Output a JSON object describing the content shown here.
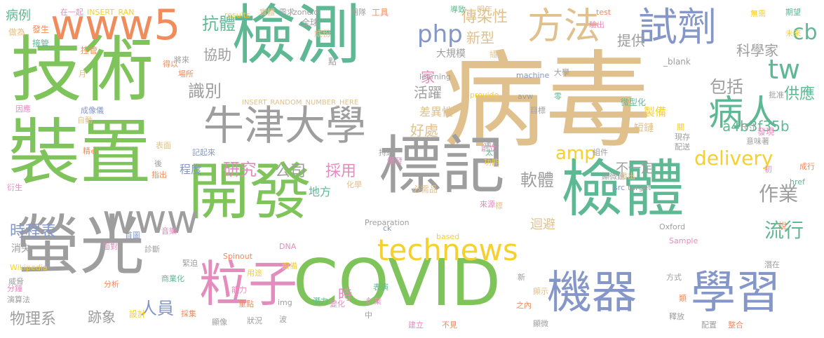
{
  "cloud": {
    "palette": {
      "tan": "#e0c18d",
      "green": "#7fc45a",
      "teal": "#5fb894",
      "gray": "#9e9e9e",
      "blue": "#8597c8",
      "pink": "#e58cbe",
      "orange": "#f08c5c",
      "yellow": "#f5d02f"
    },
    "words": [
      "病毒",
      "檢測",
      "技術",
      "裝置",
      "開發",
      "標記",
      "檢體",
      "螢光",
      "COVID",
      "機器",
      "學習",
      "牛津大學",
      "technews",
      "www5",
      "www",
      "試劑",
      "方法",
      "粒子",
      "病人",
      "php",
      "tw",
      "cb",
      "delivery",
      "amp",
      "抗體",
      "協助",
      "識別",
      "研究",
      "公司",
      "採用",
      "軟體",
      "作業",
      "流行",
      "包括",
      "供應",
      "家",
      "時程表",
      "人員",
      "物理系",
      "跡象",
      "時",
      "傳染性",
      "新型",
      "科學家",
      "活躍",
      "好處",
      "差異性",
      "不一定",
      "迴避",
      "a4b3f35b",
      "提供",
      "病例",
      "做為",
      "發生",
      "接管",
      "控管",
      "在一起",
      "INSERT_RAN",
      "INSERT_RANDOM_NUMBER_HERE",
      "results",
      "實體",
      "需求",
      "zoneid",
      "團隊",
      "工具",
      "導致",
      "明年",
      "test",
      "驗出",
      "無需",
      "期望",
      "未來",
      "全球",
      "成份",
      "大規模",
      "插入",
      "點",
      "_blank",
      "learning",
      "machine",
      "大學",
      "provide",
      "avw",
      "零",
      "微型化",
      "製備",
      "短鏈",
      "目標",
      "尺寸",
      "意味著",
      "批准",
      "關",
      "發現",
      "現存",
      "配送",
      "初",
      "成行",
      "得以",
      "將來",
      "場所",
      "月",
      "因應",
      "成像儀",
      "自動",
      "精心",
      "表面",
      "記起來",
      "持續",
      "爆發",
      "運算",
      "太",
      "功能",
      "創立",
      "組件",
      "顯微鏡",
      "發出",
      "target",
      "href",
      "src",
      "程度",
      "地方",
      "化學",
      "必需品",
      "來源",
      "標",
      "衍生",
      "Preparation",
      "ck",
      "based",
      "消失",
      "首圖",
      "音樂",
      "面對",
      "診斷",
      "緊迫",
      "Spinout",
      "DNA",
      "用途",
      "設備",
      "Oxford",
      "Sample",
      "說",
      "潛在",
      "Wikipedia",
      "威脅",
      "分鐘",
      "演算法",
      "分析",
      "商業化",
      "能力",
      "重點",
      "img",
      "表演",
      "創業",
      "顯示",
      "新",
      "方式",
      "設計",
      "採集",
      "顯像",
      "狀況",
      "波",
      "變化",
      "潛力",
      "中",
      "之內",
      "類",
      "釋放",
      "配置",
      "整合",
      "建立",
      "不見",
      "顯微",
      "後",
      "指出"
    ]
  }
}
